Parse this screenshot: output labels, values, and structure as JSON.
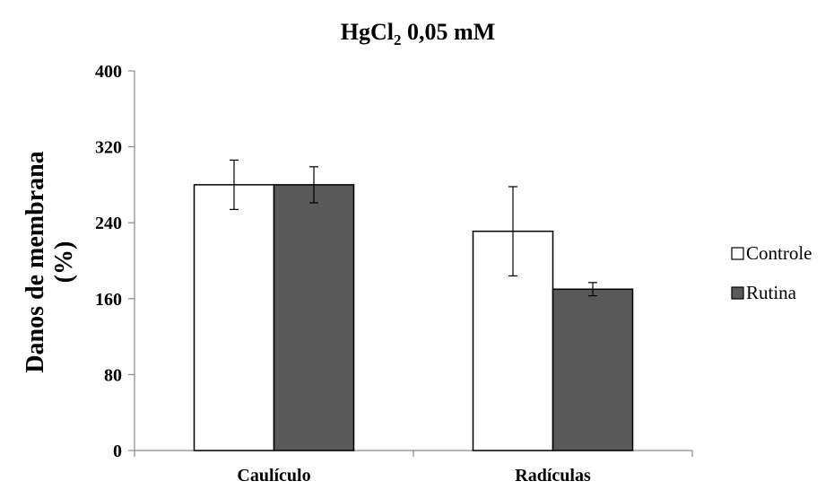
{
  "chart_data": {
    "type": "bar",
    "title": {
      "main": "HgCl",
      "subscript": "2",
      "suffix": " 0,05 mM"
    },
    "ylabel": [
      "Danos de membrana",
      "(%)"
    ],
    "xlabel": "",
    "categories": [
      "Caulículo",
      "Radículas"
    ],
    "ylim": [
      0,
      400
    ],
    "yticks": [
      "0",
      "80",
      "160",
      "240",
      "320",
      "400"
    ],
    "yticks_values": [
      0,
      80,
      160,
      240,
      320,
      400
    ],
    "grid": false,
    "legend": "right",
    "series": [
      {
        "name": "Controle",
        "values": [
          280,
          231
        ],
        "error": [
          26,
          47
        ],
        "color": "#ffffff",
        "edge": "#000000"
      },
      {
        "name": "Rutina",
        "values": [
          280,
          170
        ],
        "error": [
          19,
          7
        ],
        "color": "#595959",
        "edge": "#000000"
      }
    ]
  }
}
